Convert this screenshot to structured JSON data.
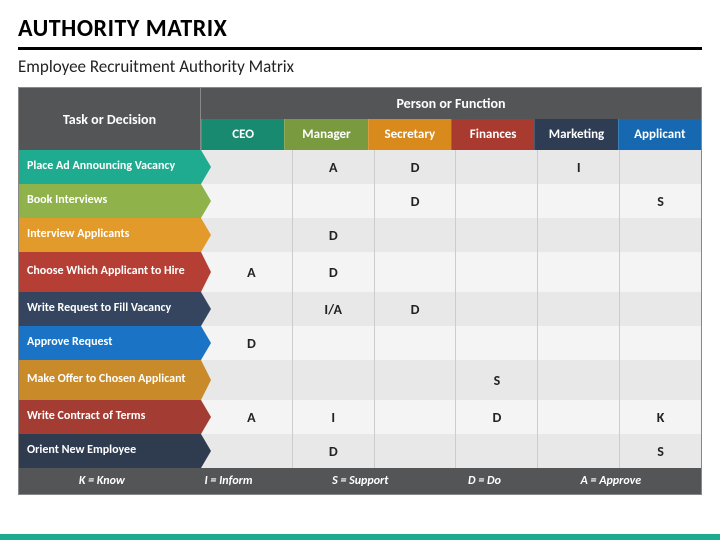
{
  "title": "AUTHORITY MATRIX",
  "subtitle": "Employee Recruitment Authority Matrix",
  "task_header": "Task or Decision",
  "person_header": "Person or Function",
  "columns": [
    {
      "label": "CEO",
      "color": "#188a6f"
    },
    {
      "label": "Manager",
      "color": "#7a9a3f"
    },
    {
      "label": "Secretary",
      "color": "#d88a1c"
    },
    {
      "label": "Finances",
      "color": "#a83a30"
    },
    {
      "label": "Marketing",
      "color": "#2e3d54"
    },
    {
      "label": "Applicant",
      "color": "#1669b0"
    }
  ],
  "row_colors": {
    "even": "#e8e8e8",
    "odd": "#f4f4f4"
  },
  "rows": [
    {
      "label": "Place Ad Announcing Vacancy",
      "color": "#1fab8f",
      "cells": [
        "",
        "A",
        "D",
        "",
        "I",
        ""
      ],
      "tall": false
    },
    {
      "label": "Book Interviews",
      "color": "#8fb24a",
      "cells": [
        "",
        "",
        "D",
        "",
        "",
        "S"
      ],
      "tall": false
    },
    {
      "label": "Interview Applicants",
      "color": "#e29a2b",
      "cells": [
        "",
        "D",
        "",
        "",
        "",
        ""
      ],
      "tall": false
    },
    {
      "label": "Choose Which Applicant to Hire",
      "color": "#b53f34",
      "cells": [
        "A",
        "D",
        "",
        "",
        "",
        ""
      ],
      "tall": true
    },
    {
      "label": "Write Request to Fill Vacancy",
      "color": "#354560",
      "cells": [
        "",
        "I/A",
        "D",
        "",
        "",
        ""
      ],
      "tall": false
    },
    {
      "label": "Approve Request",
      "color": "#1a73c4",
      "cells": [
        "D",
        "",
        "",
        "",
        "",
        ""
      ],
      "tall": false
    },
    {
      "label": "Make Offer to Chosen Applicant",
      "color": "#c98a2a",
      "cells": [
        "",
        "",
        "",
        "S",
        "",
        ""
      ],
      "tall": true
    },
    {
      "label": "Write  Contract of Terms",
      "color": "#a33c33",
      "cells": [
        "A",
        "I",
        "",
        "D",
        "",
        "K"
      ],
      "tall": false
    },
    {
      "label": "Orient New Employee",
      "color": "#2f3c50",
      "cells": [
        "",
        "D",
        "",
        "",
        "",
        "S"
      ],
      "tall": false
    }
  ],
  "legend": [
    "K = Know",
    "I = Inform",
    "S = Support",
    "D = Do",
    "A = Approve"
  ]
}
